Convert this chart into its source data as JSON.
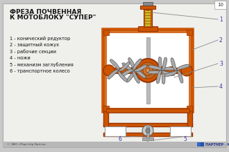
{
  "title_line1": "ФРЕЗА ПОЧВЕННАЯ",
  "title_line2": "К МОТОБЛОКУ \"СУПЕР\"",
  "legend_items": [
    "1 - конический редуктор",
    "2 - защитный кожух",
    "3 - рабочие секции",
    "4 - ножи",
    "5 - механизм заглубления",
    "6 - транспортное колесо"
  ],
  "bg_color": "#c8c8c8",
  "slide_bg": "#efefeb",
  "title_color": "#111111",
  "legend_color": "#111111",
  "orange": "#CC5500",
  "dark_orange": "#993300",
  "yellow": "#D4C030",
  "blade_color": "#aaaaaa",
  "blade_edge": "#555555",
  "gray_line": "#888888",
  "number_color": "#3333aa",
  "page_num": "10",
  "footer_left": "© ЗАО «Партнёр Бренд»",
  "footer_right": "ПАРТНЕР · Медиа",
  "figsize": [
    3.3,
    2.2
  ],
  "dpi": 100
}
